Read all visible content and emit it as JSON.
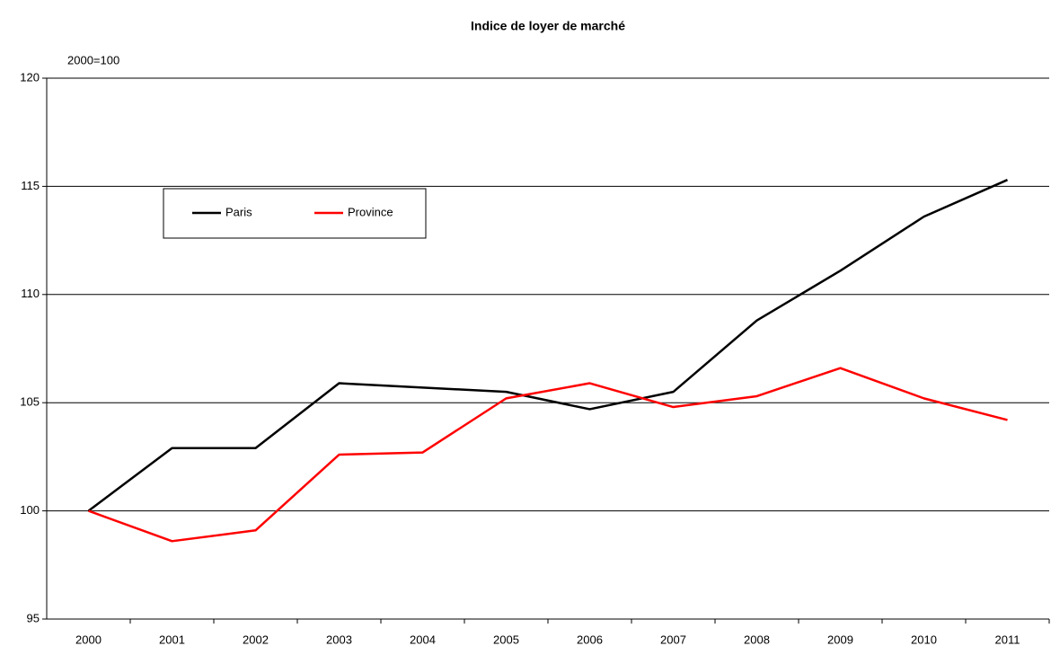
{
  "chart_data": {
    "type": "line",
    "title": "Indice de loyer de marché",
    "y_label": "2000=100",
    "categories": [
      "2000",
      "2001",
      "2002",
      "2003",
      "2004",
      "2005",
      "2006",
      "2007",
      "2008",
      "2009",
      "2010",
      "2011"
    ],
    "series": [
      {
        "name": "Paris",
        "color": "#000000",
        "values": [
          100,
          102.9,
          102.9,
          105.9,
          105.7,
          105.5,
          104.7,
          105.5,
          108.8,
          111.1,
          113.6,
          115.3
        ]
      },
      {
        "name": "Province",
        "color": "#ff0000",
        "values": [
          100,
          98.6,
          99.1,
          102.6,
          102.7,
          105.2,
          105.9,
          104.8,
          105.3,
          106.6,
          105.2,
          104.2
        ]
      }
    ],
    "ylim": [
      95,
      120
    ],
    "yticks": [
      95,
      100,
      105,
      110,
      115,
      120
    ],
    "grid": true,
    "legend": "upper left"
  }
}
